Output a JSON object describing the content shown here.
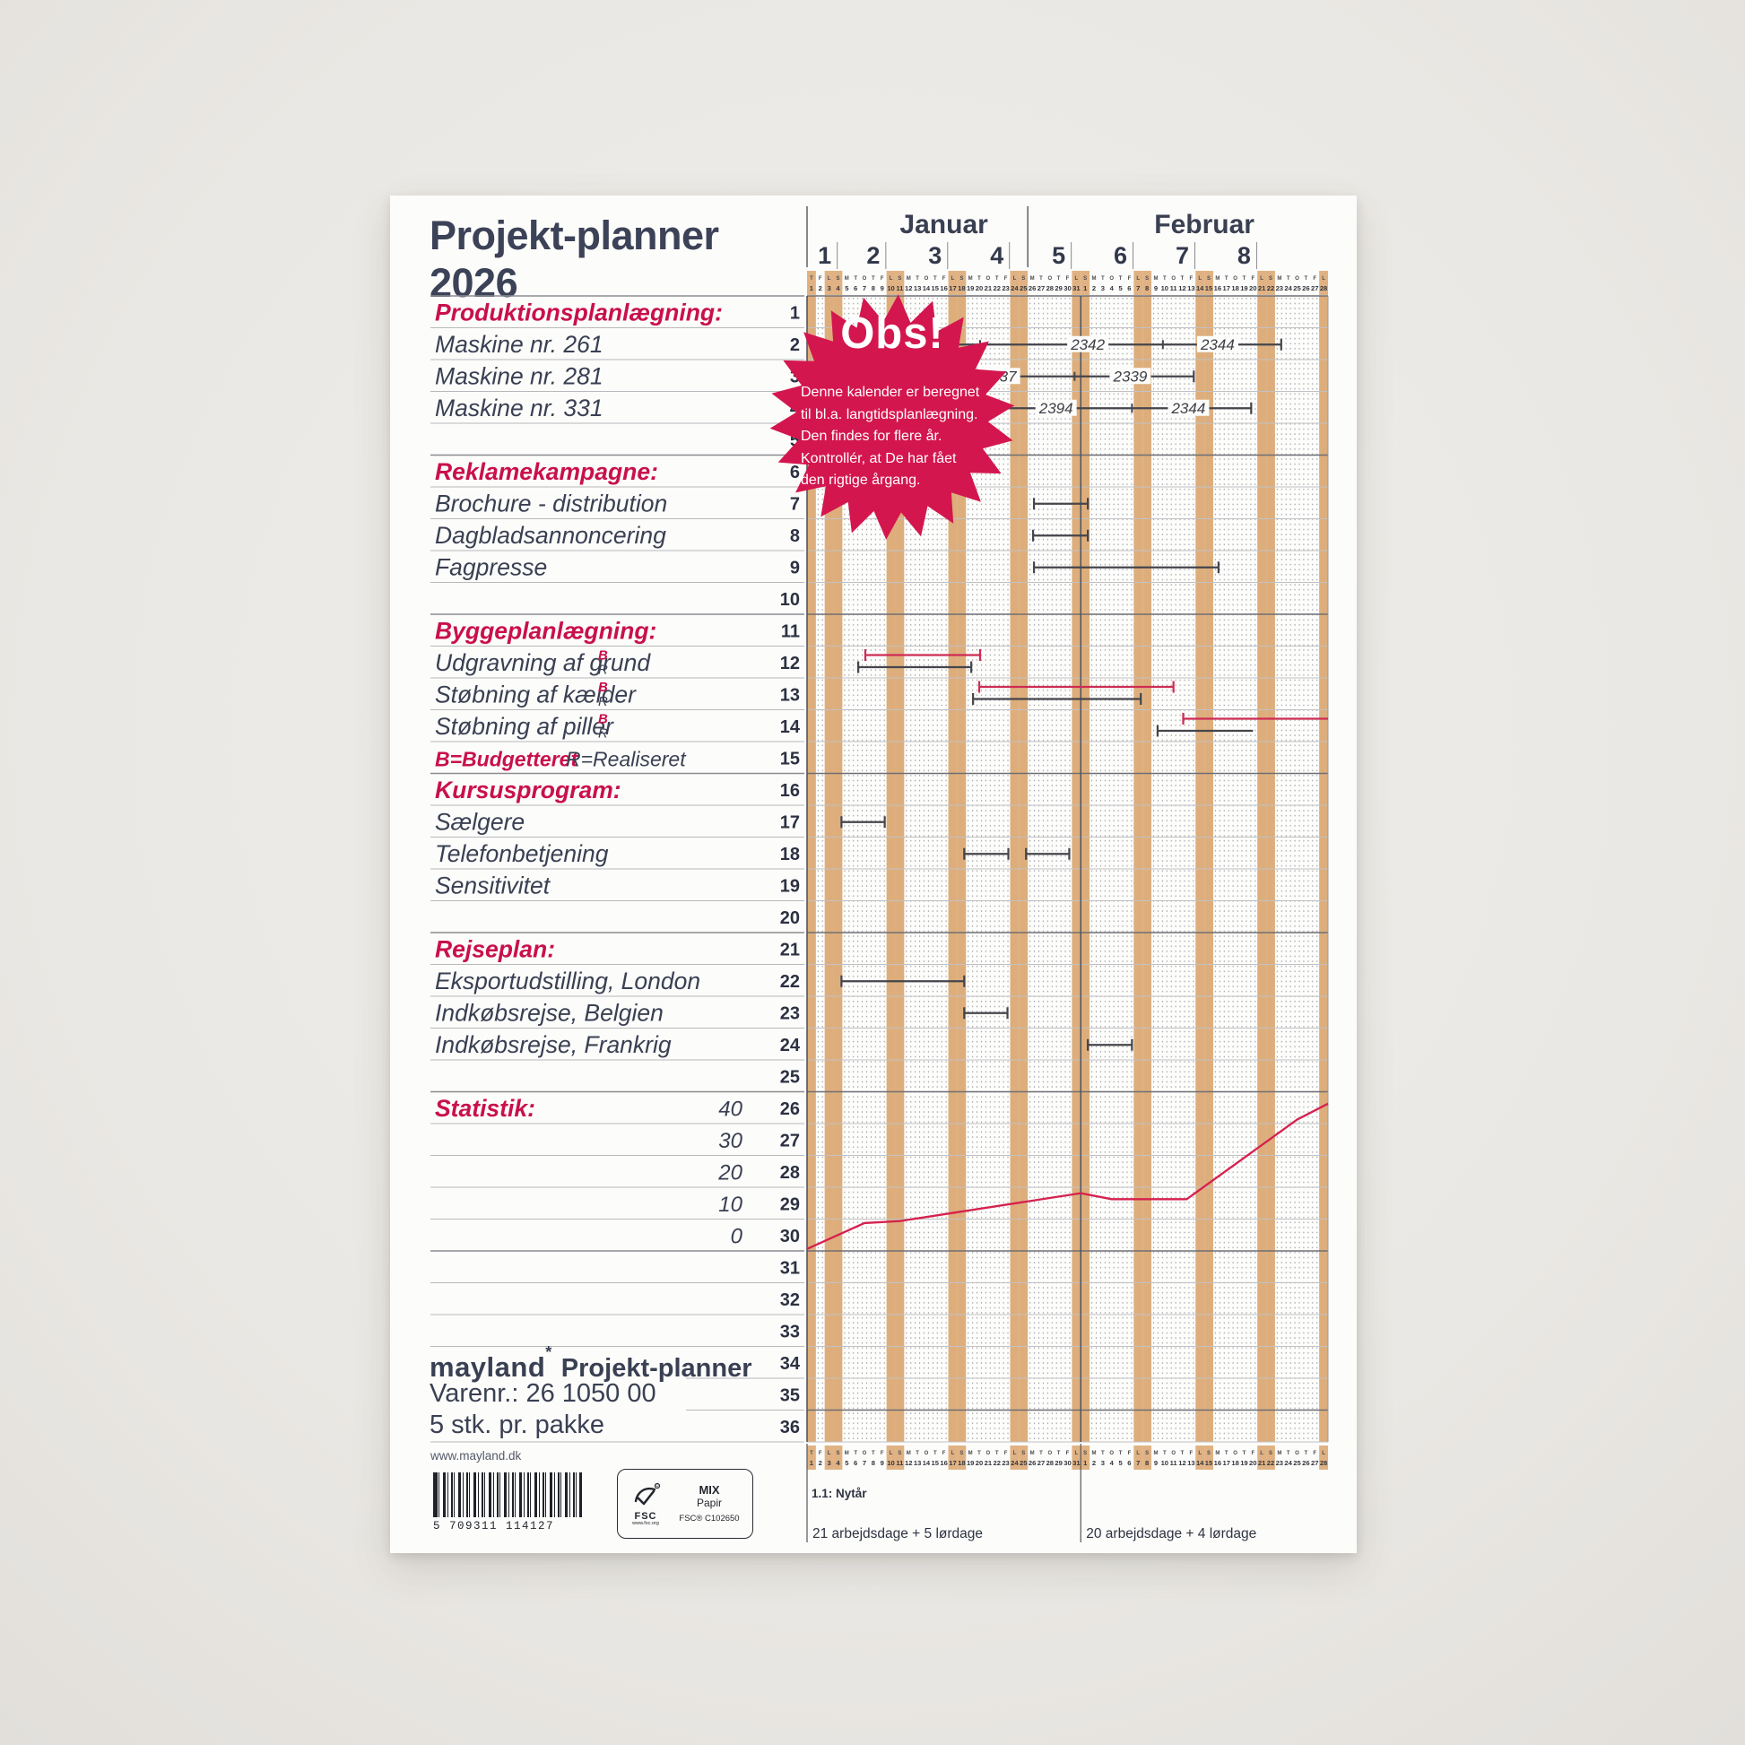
{
  "page": {
    "title_line1": "Projekt-planner",
    "title_line2": "2026"
  },
  "colors": {
    "ink": "#3a4053",
    "accent_red": "#c9104c",
    "badge_red": "#d4164e",
    "tan_stripe": "#ddae7c",
    "tan_header": "#e0b283",
    "bar_dark": "#45454c",
    "bar_red": "#cd2c55",
    "stat_line_red": "#d5214e"
  },
  "badge": {
    "title": "Obs!",
    "lines": [
      "Denne kalender er beregnet",
      "til bl.a. langtidsplanlægning.",
      "Den findes for flere år.",
      "Kontrollér, at De har fået",
      "den rigtige årgang."
    ]
  },
  "calendar": {
    "months": [
      {
        "name": "Januar",
        "days": 31,
        "letters": "TFLSMTOTFLSMTOTFLSMTOTFLSMTOTFL",
        "holidays": [
          1
        ],
        "workdays_note": "21 arbejdsdage + 5 lørdage"
      },
      {
        "name": "Februar",
        "days": 28,
        "letters": "SMTOTFLSMTOTFLSMTOTFLSMTOTFL",
        "holidays": [],
        "workdays_note": "20 arbejdsdage + 4 lørdage"
      }
    ],
    "weeks": [
      {
        "label": "1",
        "start": 0,
        "end": 4
      },
      {
        "label": "2",
        "start": 4,
        "end": 11
      },
      {
        "label": "3",
        "start": 11,
        "end": 18
      },
      {
        "label": "4",
        "start": 18,
        "end": 25
      },
      {
        "label": "5",
        "start": 25,
        "end": 32
      },
      {
        "label": "6",
        "start": 32,
        "end": 39
      },
      {
        "label": "7",
        "start": 39,
        "end": 46
      },
      {
        "label": "8",
        "start": 46,
        "end": 53
      }
    ],
    "holiday_note": "1.1: Nytår"
  },
  "rows": [
    {
      "n": 1,
      "label": "Produktionsplanlægning:",
      "red": true
    },
    {
      "n": 2,
      "label": "Maskine nr. 261"
    },
    {
      "n": 3,
      "label": "Maskine nr. 281"
    },
    {
      "n": 4,
      "label": "Maskine nr. 331"
    },
    {
      "n": 5,
      "label": ""
    },
    {
      "n": 6,
      "label": "Reklamekampagne:",
      "red": true
    },
    {
      "n": 7,
      "label": "Brochure - distribution"
    },
    {
      "n": 8,
      "label": "Dagbladsannoncering"
    },
    {
      "n": 9,
      "label": "Fagpresse"
    },
    {
      "n": 10,
      "label": ""
    },
    {
      "n": 11,
      "label": "Byggeplanlægning:",
      "red": true
    },
    {
      "n": 12,
      "label": "Udgravning af grund",
      "br": true
    },
    {
      "n": 13,
      "label": "Støbning af kælder",
      "br": true
    },
    {
      "n": 14,
      "label": "Støbning af piller",
      "br": true
    },
    {
      "n": 15,
      "legend": [
        "B=Budgetteret",
        "R=Realiseret"
      ]
    },
    {
      "n": 16,
      "label": "Kursusprogram:",
      "red": true
    },
    {
      "n": 17,
      "label": "Sælgere"
    },
    {
      "n": 18,
      "label": "Telefonbetjening"
    },
    {
      "n": 19,
      "label": "Sensitivitet"
    },
    {
      "n": 20,
      "label": ""
    },
    {
      "n": 21,
      "label": "Rejseplan:",
      "red": true
    },
    {
      "n": 22,
      "label": "Eksportudstilling, London"
    },
    {
      "n": 23,
      "label": "Indkøbsrejse, Belgien"
    },
    {
      "n": 24,
      "label": "Indkøbsrejse, Frankrig"
    },
    {
      "n": 25,
      "label": ""
    },
    {
      "n": 26,
      "label": "Statistik:",
      "red": true,
      "scale": "40"
    },
    {
      "n": 27,
      "label": "",
      "scale": "30"
    },
    {
      "n": 28,
      "label": "",
      "scale": "20"
    },
    {
      "n": 29,
      "label": "",
      "scale": "10"
    },
    {
      "n": 30,
      "label": "",
      "scale": "0"
    }
  ],
  "br_letters": {
    "b": "B",
    "r": "R"
  },
  "chart_data": {
    "type": "gantt",
    "bars": [
      {
        "row": 2,
        "color": "dark",
        "s": 14.2,
        "e": 53.7,
        "cap_s": false,
        "ticks": [
          19.6,
          40.3
        ],
        "labels": [
          {
            "t": "2342",
            "d": 31.8
          },
          {
            "t": "2344",
            "d": 46.5
          }
        ]
      },
      {
        "row": 3,
        "color": "dark",
        "s": 19.8,
        "e": 43.8,
        "cap_s": false,
        "ticks": [
          30.3
        ],
        "labels": [
          {
            "t": "2337",
            "d": 21.8
          },
          {
            "t": "2339",
            "d": 36.6
          }
        ]
      },
      {
        "row": 4,
        "color": "dark",
        "s": 20.1,
        "e": 50.3,
        "cap_s": false,
        "ticks": [
          36.8
        ],
        "labels": [
          {
            "t": "2394",
            "d": 28.2
          },
          {
            "t": "2344",
            "d": 43.2
          }
        ]
      },
      {
        "row": 7,
        "color": "dark",
        "s": 25.7,
        "e": 31.8
      },
      {
        "row": 8,
        "color": "dark",
        "s": 25.6,
        "e": 31.8
      },
      {
        "row": 9,
        "color": "dark",
        "s": 25.7,
        "e": 46.6
      },
      {
        "row": 12,
        "color": "red",
        "pos": "B",
        "s": 6.6,
        "e": 19.6
      },
      {
        "row": 12,
        "color": "dark",
        "pos": "R",
        "s": 5.8,
        "e": 18.6
      },
      {
        "row": 13,
        "color": "red",
        "pos": "B",
        "s": 19.5,
        "e": 41.5
      },
      {
        "row": 13,
        "color": "dark",
        "pos": "R",
        "s": 18.8,
        "e": 37.8
      },
      {
        "row": 14,
        "color": "red",
        "pos": "B",
        "s": 42.6,
        "e": 59.1,
        "cap_e": false
      },
      {
        "row": 14,
        "color": "dark",
        "pos": "R",
        "s": 39.7,
        "e": 50.5,
        "cap_e": false
      },
      {
        "row": 17,
        "color": "dark",
        "s": 3.9,
        "e": 8.8
      },
      {
        "row": 18,
        "color": "dark",
        "s": 17.8,
        "e": 22.8
      },
      {
        "row": 18,
        "color": "dark",
        "s": 24.8,
        "e": 29.7
      },
      {
        "row": 22,
        "color": "dark",
        "s": 3.9,
        "e": 17.8
      },
      {
        "row": 23,
        "color": "dark",
        "s": 17.8,
        "e": 22.7
      },
      {
        "row": 24,
        "color": "dark",
        "s": 31.8,
        "e": 36.8
      }
    ],
    "stat_line": {
      "ylabels": [
        "40",
        "30",
        "20",
        "10",
        "0"
      ],
      "points": [
        [
          0,
          0.5
        ],
        [
          6.5,
          7
        ],
        [
          10.5,
          7.5
        ],
        [
          31,
          14.5
        ],
        [
          34.5,
          13
        ],
        [
          43,
          13
        ],
        [
          55.5,
          33
        ],
        [
          59,
          37
        ]
      ]
    }
  },
  "footer": {
    "website": "www.mayland.dk",
    "barcode_number": "5 709311 114127",
    "brand": "mayland",
    "brand_mark": "*",
    "brand_product": "Projekt-planner",
    "varenr": "Varenr.: 26 1050 00",
    "pack": "5 stk. pr. pakke",
    "fsc": {
      "word": "FSC",
      "url": "www.fsc.org",
      "mix": "MIX",
      "papir": "Papir",
      "cert": "FSC® C102650"
    }
  }
}
